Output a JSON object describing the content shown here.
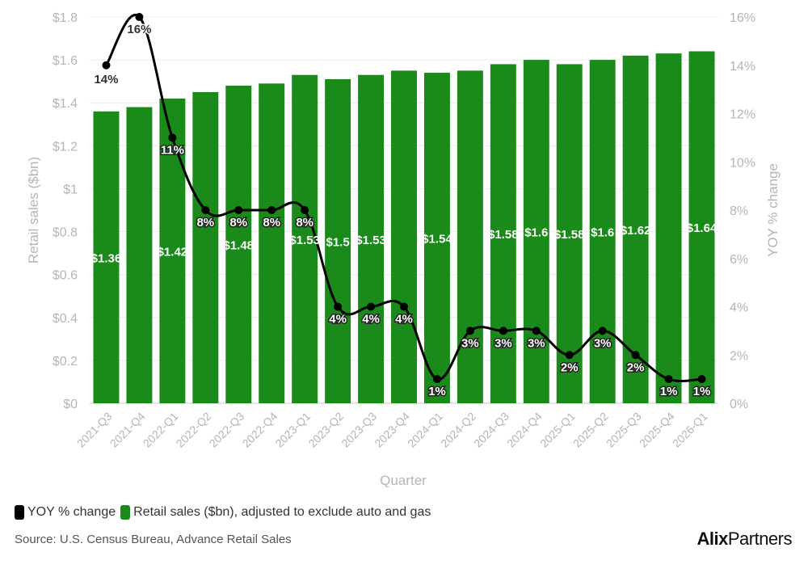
{
  "chart_data": {
    "type": "bar+line",
    "xlabel": "Quarter",
    "ylabel": "Retail sales ($bn)",
    "y2label": "YOY % change",
    "ylim": [
      0,
      1.8
    ],
    "y2lim": [
      0,
      16
    ],
    "categories": [
      "2021-Q3",
      "2021-Q4",
      "2022-Q1",
      "2022-Q2",
      "2022-Q3",
      "2022-Q4",
      "2023-Q1",
      "2023-Q2",
      "2023-Q3",
      "2023-Q4",
      "2024-Q1",
      "2024-Q2",
      "2024-Q3",
      "2024-Q4",
      "2025-Q1",
      "2025-Q2",
      "2025-Q3",
      "2025-Q4",
      "2026-Q1"
    ],
    "series": [
      {
        "name": "Retail sales ($bn), adjusted to exclude auto and gas",
        "type": "bar",
        "axis": "left",
        "color": "#1a8a1a",
        "values": [
          1.36,
          1.38,
          1.42,
          1.45,
          1.48,
          1.49,
          1.53,
          1.51,
          1.53,
          1.55,
          1.54,
          1.55,
          1.58,
          1.6,
          1.58,
          1.6,
          1.62,
          1.63,
          1.64
        ],
        "data_labels": [
          "$1.36",
          "",
          "$1.42",
          "",
          "$1.48",
          "",
          "$1.53",
          "$1.5",
          "$1.53",
          "",
          "$1.54",
          "",
          "$1.58",
          "$1.6",
          "$1.58",
          "$1.6",
          "$1.62",
          "",
          "$1.64"
        ]
      },
      {
        "name": "YOY % change",
        "type": "line",
        "axis": "right",
        "color": "#000000",
        "values": [
          14,
          16,
          11,
          8,
          8,
          8,
          8,
          4,
          4,
          4,
          1,
          3,
          3,
          3,
          2,
          3,
          2,
          1,
          1
        ],
        "data_labels": [
          "14%",
          "16%",
          "11%",
          "8%",
          "8%",
          "8%",
          "8%",
          "4%",
          "4%",
          "4%",
          "1%",
          "3%",
          "3%",
          "3%",
          "2%",
          "3%",
          "2%",
          "1%",
          "1%"
        ]
      }
    ],
    "yticks": [
      "$0",
      "$0.2",
      "$0.4",
      "$0.6",
      "$0.8",
      "$1",
      "$1.2",
      "$1.4",
      "$1.6",
      "$1.8"
    ],
    "y2ticks": [
      "0%",
      "2%",
      "4%",
      "6%",
      "8%",
      "10%",
      "12%",
      "14%",
      "16%"
    ],
    "grid": true,
    "legend_position": "bottom-left"
  },
  "legend": {
    "line_label": "YOY % change",
    "bar_label": "Retail sales ($bn), adjusted to exclude auto and gas",
    "line_color": "#000000",
    "bar_color": "#1a8a1a"
  },
  "source": "Source: U.S. Census Bureau, Advance Retail Sales",
  "logo": {
    "bold": "Alix",
    "light": "Partners"
  }
}
